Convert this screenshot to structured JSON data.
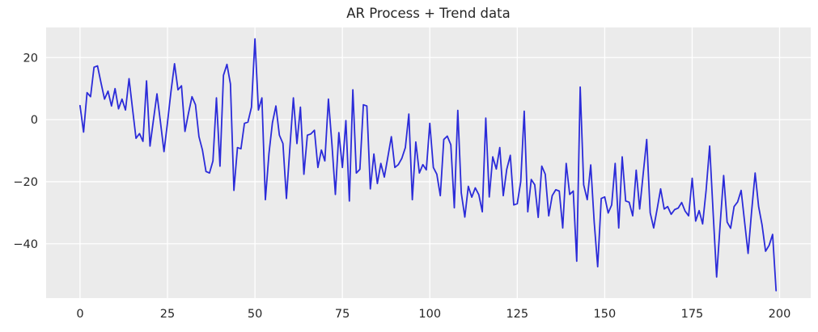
{
  "figure": {
    "background": "#ffffff",
    "plot_background": "#ebebeb",
    "grid_color": "#ffffff",
    "tick_label_color": "#262626",
    "title_color": "#262626"
  },
  "chart_data": {
    "type": "line",
    "title": "AR Process + Trend data",
    "xlabel": "",
    "ylabel": "",
    "grid": true,
    "legend": false,
    "xlim": [
      -9.7,
      208.9
    ],
    "ylim": [
      -57.5,
      29.7
    ],
    "x_ticks": [
      0,
      25,
      50,
      75,
      100,
      125,
      150,
      175,
      200
    ],
    "x_tick_labels": [
      "0",
      "25",
      "50",
      "75",
      "100",
      "125",
      "150",
      "175",
      "200"
    ],
    "y_ticks": [
      20,
      0,
      -20,
      -40
    ],
    "y_tick_labels": [
      "20",
      "0",
      "−20",
      "−40"
    ],
    "x_start": 0,
    "x_step": 1,
    "series": [
      {
        "name": "AR Process + Trend",
        "color": "#2b2bd9",
        "values": [
          4.5,
          -4,
          8.7,
          7.4,
          16.9,
          17.3,
          11.8,
          6.6,
          9.2,
          4.4,
          10,
          3.5,
          6.6,
          3.1,
          13.2,
          3.5,
          -6,
          -4.5,
          -7,
          12.5,
          -8.5,
          0,
          8.3,
          -1,
          -10.3,
          -1,
          9,
          18,
          9.6,
          10.9,
          -3.8,
          2,
          7.4,
          4.8,
          -5.5,
          -9.8,
          -16.7,
          -17.2,
          -13.3,
          7,
          -15,
          14.3,
          17.8,
          11.5,
          -22.8,
          -9,
          -9.4,
          -1.2,
          -0.8,
          4,
          26,
          3.1,
          7,
          -25.8,
          -11,
          -1,
          4.4,
          -5,
          -7.7,
          -25.4,
          -9,
          7,
          -7.7,
          4,
          -17.6,
          -5,
          -4.6,
          -3.4,
          -15.4,
          -9.8,
          -13.3,
          6.6,
          -7.7,
          -24.1,
          -4.2,
          -15.4,
          -0.3,
          -26.2,
          9.6,
          -17.2,
          -16,
          4.8,
          4.4,
          -22.3,
          -11.1,
          -20.6,
          -14.1,
          -18.5,
          -12,
          -5.5,
          -15.4,
          -14.5,
          -12.5,
          -9,
          1.8,
          -25.8,
          -7.2,
          -17.2,
          -14.5,
          -16.2,
          -1.2,
          -15.4,
          -17.6,
          -24.5,
          -6.4,
          -5.3,
          -8.1,
          -28.4,
          3,
          -23.6,
          -31.4,
          -21.5,
          -25,
          -22,
          -24.2,
          -29.7,
          0.5,
          -24.9,
          -12,
          -15.9,
          -9,
          -24.5,
          -16,
          -11.5,
          -27.5,
          -27.1,
          -20,
          2.7,
          -29.7,
          -19.3,
          -21,
          -31.5,
          -15,
          -17.6,
          -31,
          -24.5,
          -22.6,
          -23,
          -34.9,
          -14.1,
          -24.1,
          -23,
          -45.6,
          10.5,
          -21,
          -25.8,
          -14.6,
          -33,
          -47.4,
          -25.4,
          -24.9,
          -30.1,
          -27.5,
          -14.1,
          -34.9,
          -12,
          -26.2,
          -26.6,
          -31,
          -16.3,
          -28.8,
          -17.6,
          -6.4,
          -30,
          -34.9,
          -28.8,
          -22.3,
          -28.8,
          -28,
          -30.5,
          -29,
          -28.5,
          -26.7,
          -29.5,
          -31,
          -18.9,
          -32.7,
          -29.3,
          -33.6,
          -22.8,
          -8.5,
          -30,
          -50.7,
          -34,
          -18,
          -33,
          -35,
          -28,
          -26.5,
          -22.8,
          -33,
          -43.1,
          -29.7,
          -17.2,
          -28,
          -34,
          -42.4,
          -40.5,
          -37,
          -55.1
        ]
      }
    ]
  }
}
